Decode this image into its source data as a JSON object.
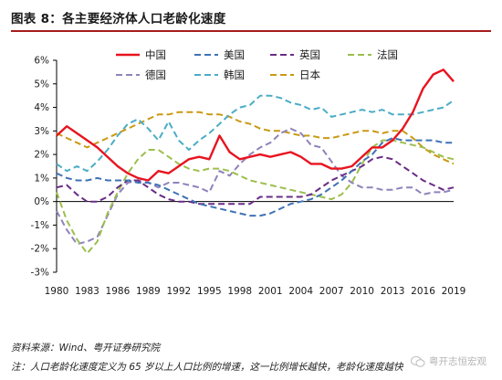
{
  "page": {
    "title": "图表 8：各主要经济体人口老龄化速度",
    "source": "资料来源：Wind、粤开证券研究院",
    "note": "注：人口老龄化速度定义为 65 岁以上人口比例的增速，这一比例增长越快，老龄化速度越快",
    "watermark": "粤开志恒宏观"
  },
  "colors": {
    "accent_rule": "#a61c1c",
    "china": "#e8141f",
    "usa": "#3f72b4",
    "uk": "#6a2c86",
    "france": "#9cbf4c",
    "germany": "#8f82bc",
    "korea": "#4bacc6",
    "japan": "#c99a12"
  },
  "icons": {
    "watermark": "wechat-icon"
  },
  "chart_data": {
    "type": "line",
    "title": "",
    "xlabel": "",
    "ylabel": "",
    "ylim": [
      -3,
      6
    ],
    "yticks": [
      "6%",
      "5%",
      "4%",
      "3%",
      "2%",
      "1%",
      "0%",
      "-1%",
      "-2%",
      "-3%"
    ],
    "xticks": [
      "1980",
      "1983",
      "1986",
      "1989",
      "1992",
      "1995",
      "1998",
      "2001",
      "2004",
      "2007",
      "2010",
      "2013",
      "2016",
      "2019"
    ],
    "grid": false,
    "legend": "top",
    "x": [
      1980,
      1981,
      1982,
      1983,
      1984,
      1985,
      1986,
      1987,
      1988,
      1989,
      1990,
      1991,
      1992,
      1993,
      1994,
      1995,
      1996,
      1997,
      1998,
      1999,
      2000,
      2001,
      2002,
      2003,
      2004,
      2005,
      2006,
      2007,
      2008,
      2009,
      2010,
      2011,
      2012,
      2013,
      2014,
      2015,
      2016,
      2017,
      2018,
      2019
    ],
    "series": [
      {
        "name": "中国",
        "style": "solid",
        "color": "#e8141f",
        "values": [
          2.8,
          3.2,
          2.9,
          2.6,
          2.3,
          1.9,
          1.5,
          1.2,
          1.0,
          0.9,
          1.3,
          1.2,
          1.5,
          1.8,
          1.9,
          1.8,
          2.8,
          2.1,
          1.8,
          1.9,
          2.0,
          1.9,
          2.0,
          2.1,
          1.9,
          1.6,
          1.6,
          1.4,
          1.4,
          1.5,
          1.9,
          2.3,
          2.3,
          2.6,
          3.1,
          3.8,
          4.8,
          5.4,
          5.6,
          5.1
        ]
      },
      {
        "name": "美国",
        "style": "dashed",
        "color": "#3f72b4",
        "values": [
          1.2,
          1.0,
          0.9,
          0.9,
          1.0,
          0.9,
          0.9,
          0.9,
          0.8,
          0.8,
          0.7,
          0.5,
          0.3,
          0.1,
          -0.1,
          -0.2,
          -0.3,
          -0.4,
          -0.5,
          -0.6,
          -0.6,
          -0.5,
          -0.3,
          -0.1,
          0.0,
          0.1,
          0.3,
          0.6,
          0.9,
          1.3,
          1.7,
          2.0,
          2.5,
          2.7,
          2.6,
          2.6,
          2.6,
          2.6,
          2.5,
          2.5
        ]
      },
      {
        "name": "英国",
        "style": "dashed",
        "color": "#6a2c86",
        "values": [
          0.6,
          0.7,
          0.3,
          0.0,
          0.0,
          0.2,
          0.6,
          0.9,
          0.9,
          0.6,
          0.3,
          0.1,
          0.0,
          0.0,
          -0.1,
          -0.1,
          -0.1,
          -0.1,
          -0.1,
          -0.1,
          0.2,
          0.2,
          0.2,
          0.2,
          0.2,
          0.3,
          0.6,
          0.9,
          1.1,
          1.3,
          1.5,
          1.8,
          1.9,
          1.8,
          1.5,
          1.2,
          0.9,
          0.7,
          0.5,
          0.6
        ]
      },
      {
        "name": "法国",
        "style": "dashed",
        "color": "#9cbf4c",
        "values": [
          0.4,
          -0.8,
          -1.6,
          -2.2,
          -1.7,
          -0.5,
          0.4,
          1.2,
          1.8,
          2.2,
          2.2,
          1.9,
          1.6,
          1.4,
          1.3,
          1.4,
          1.4,
          1.3,
          1.1,
          0.9,
          0.8,
          0.7,
          0.6,
          0.5,
          0.4,
          0.3,
          0.2,
          0.1,
          0.3,
          0.8,
          1.6,
          2.3,
          2.6,
          2.6,
          2.5,
          2.4,
          2.3,
          2.1,
          1.9,
          1.8
        ]
      },
      {
        "name": "德国",
        "style": "dashed",
        "color": "#8f82bc",
        "values": [
          -0.4,
          -1.2,
          -1.8,
          -1.7,
          -1.5,
          -0.6,
          0.3,
          0.8,
          0.9,
          0.8,
          0.6,
          0.8,
          0.8,
          0.7,
          0.6,
          0.4,
          1.3,
          1.1,
          1.6,
          2.0,
          2.3,
          2.5,
          2.9,
          3.1,
          2.9,
          2.4,
          2.3,
          1.7,
          1.1,
          0.8,
          0.6,
          0.6,
          0.5,
          0.5,
          0.6,
          0.6,
          0.3,
          0.4,
          0.4,
          0.5
        ]
      },
      {
        "name": "韩国",
        "style": "dashed",
        "color": "#4bacc6",
        "values": [
          1.6,
          1.3,
          1.5,
          1.3,
          1.7,
          2.2,
          2.8,
          3.3,
          3.5,
          3.1,
          2.6,
          3.4,
          2.6,
          2.2,
          2.6,
          2.9,
          3.3,
          3.7,
          4.0,
          4.1,
          4.5,
          4.5,
          4.4,
          4.2,
          4.1,
          3.9,
          4.0,
          3.6,
          3.7,
          3.8,
          3.9,
          3.8,
          3.9,
          3.7,
          3.7,
          3.7,
          3.8,
          3.9,
          4.0,
          4.3
        ]
      },
      {
        "name": "日本",
        "style": "dashed",
        "color": "#c99a12",
        "values": [
          2.9,
          2.7,
          2.5,
          2.3,
          2.5,
          2.7,
          2.9,
          3.1,
          3.3,
          3.5,
          3.7,
          3.7,
          3.8,
          3.8,
          3.8,
          3.7,
          3.7,
          3.6,
          3.4,
          3.3,
          3.1,
          3.0,
          3.0,
          2.9,
          2.8,
          2.8,
          2.7,
          2.7,
          2.8,
          2.9,
          3.0,
          3.0,
          2.9,
          3.0,
          3.0,
          2.7,
          2.3,
          2.0,
          1.8,
          1.6
        ]
      }
    ]
  }
}
